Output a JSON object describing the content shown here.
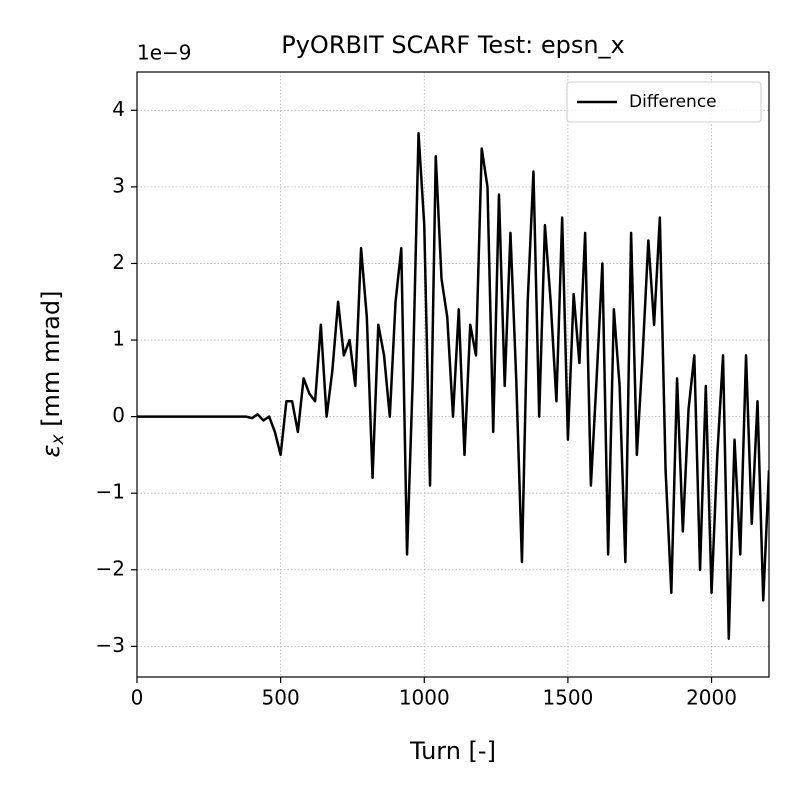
{
  "chart_data": {
    "type": "line",
    "title": "PyORBIT SCARF Test: epsn_x",
    "xlabel": "Turn [-]",
    "ylabel": {
      "symbol": "ε",
      "subscript": "x",
      "unit": " [mm mrad]"
    },
    "offset_text": "1e−9",
    "x": [
      0,
      20,
      40,
      60,
      80,
      100,
      120,
      140,
      160,
      180,
      200,
      220,
      240,
      260,
      280,
      300,
      320,
      340,
      360,
      380,
      400,
      420,
      440,
      460,
      480,
      500,
      520,
      540,
      560,
      580,
      600,
      620,
      640,
      660,
      680,
      700,
      720,
      740,
      760,
      780,
      800,
      820,
      840,
      860,
      880,
      900,
      920,
      940,
      960,
      980,
      1000,
      1020,
      1040,
      1060,
      1080,
      1100,
      1120,
      1140,
      1160,
      1180,
      1200,
      1220,
      1240,
      1260,
      1280,
      1300,
      1320,
      1340,
      1360,
      1380,
      1400,
      1420,
      1440,
      1460,
      1480,
      1500,
      1520,
      1540,
      1560,
      1580,
      1600,
      1620,
      1640,
      1660,
      1680,
      1700,
      1720,
      1740,
      1760,
      1780,
      1800,
      1820,
      1840,
      1860,
      1880,
      1900,
      1920,
      1940,
      1960,
      1980,
      2000,
      2020,
      2040,
      2060,
      2080,
      2100,
      2120,
      2140,
      2160,
      2180,
      2200
    ],
    "series": [
      {
        "name": "Difference",
        "color": "#000000",
        "values": [
          0,
          0,
          0,
          0,
          0,
          0,
          0,
          0,
          0,
          0,
          0,
          0,
          0,
          0,
          0,
          0,
          0,
          0,
          0,
          0,
          -0.02,
          0.03,
          -0.05,
          0,
          -0.2,
          -0.5,
          0.2,
          0.2,
          -0.2,
          0.5,
          0.3,
          0.2,
          1.2,
          0,
          0.6,
          1.5,
          0.8,
          1,
          0.4,
          2.2,
          1.3,
          -0.8,
          1.2,
          0.8,
          0,
          1.5,
          2.2,
          -1.8,
          0.5,
          3.7,
          2.5,
          -0.9,
          3.4,
          1.8,
          1.3,
          0,
          1.4,
          -0.5,
          1.2,
          0.8,
          3.5,
          3,
          -0.2,
          2.9,
          0.4,
          2.4,
          0.5,
          -1.9,
          1.5,
          3.2,
          0,
          2.5,
          1.5,
          0.2,
          2.6,
          -0.3,
          1.6,
          0.7,
          2.4,
          -0.9,
          0.5,
          2,
          -1.8,
          1.4,
          0.4,
          -1.9,
          2.4,
          -0.5,
          0.8,
          2.3,
          1.2,
          2.6,
          -0.7,
          -2.3,
          0.5,
          -1.5,
          0.1,
          0.8,
          -2,
          0.4,
          -2.3,
          -0.5,
          0.8,
          -2.9,
          -0.3,
          -1.8,
          0.8,
          -1.4,
          0.2,
          -2.4,
          -0.7
        ]
      }
    ],
    "xlim": [
      0,
      2200
    ],
    "xticks": [
      0,
      500,
      1000,
      1500,
      2000
    ],
    "ylim": [
      -3.4,
      4.5
    ],
    "yticks": [
      {
        "value": -3,
        "label": "−3"
      },
      {
        "value": -2,
        "label": "−2"
      },
      {
        "value": -1,
        "label": "−1"
      },
      0,
      1,
      2,
      3,
      4
    ],
    "grid": true,
    "legend": "upper right"
  }
}
